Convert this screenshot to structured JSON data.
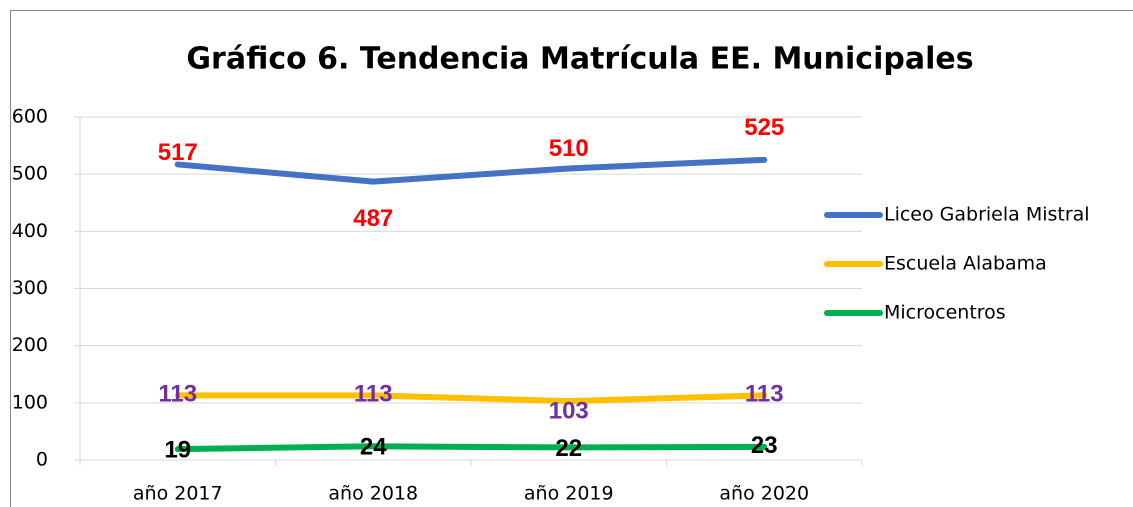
{
  "chart_data": {
    "type": "line",
    "title": "Gráfico 6. Tendencia Matrícula EE. Municipales",
    "categories": [
      "año 2017",
      "año 2018",
      "año 2019",
      "año 2020"
    ],
    "series": [
      {
        "name": "Liceo Gabriela Mistral",
        "color": "#4472c4",
        "label_color": "#ff0000",
        "values": [
          517,
          487,
          510,
          525
        ]
      },
      {
        "name": "Escuela Alabama",
        "color": "#ffc000",
        "label_color": "#7030a0",
        "values": [
          113,
          113,
          103,
          113
        ]
      },
      {
        "name": "Microcentros",
        "color": "#00b050",
        "label_color": "#000000",
        "values": [
          19,
          24,
          22,
          23
        ]
      }
    ],
    "ylim": [
      0,
      600
    ],
    "yticks": [
      0,
      100,
      200,
      300,
      400,
      500,
      600
    ],
    "grid": true,
    "legend": "right"
  }
}
